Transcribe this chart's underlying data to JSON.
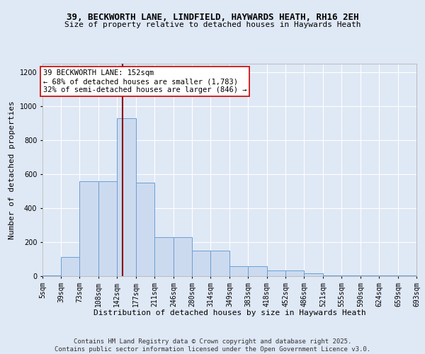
{
  "title_line1": "39, BECKWORTH LANE, LINDFIELD, HAYWARDS HEATH, RH16 2EH",
  "title_line2": "Size of property relative to detached houses in Haywards Heath",
  "xlabel": "Distribution of detached houses by size in Haywards Heath",
  "ylabel": "Number of detached properties",
  "bin_edges": [
    5,
    39,
    73,
    108,
    142,
    177,
    211,
    246,
    280,
    314,
    349,
    383,
    418,
    452,
    486,
    521,
    555,
    590,
    624,
    659,
    693
  ],
  "bar_heights": [
    5,
    112,
    558,
    558,
    930,
    550,
    228,
    228,
    148,
    148,
    60,
    60,
    32,
    32,
    18,
    5,
    5,
    5,
    5,
    5
  ],
  "bar_color": "#ccdaef",
  "bar_edge_color": "#6b9fd4",
  "vline_x": 152,
  "vline_color": "#8b0000",
  "annotation_text": "39 BECKWORTH LANE: 152sqm\n← 68% of detached houses are smaller (1,783)\n32% of semi-detached houses are larger (846) →",
  "annotation_box_color": "#ffffff",
  "annotation_box_edge": "#cc0000",
  "ylim": [
    0,
    1250
  ],
  "yticks": [
    0,
    200,
    400,
    600,
    800,
    1000,
    1200
  ],
  "background_color": "#dfe8f5",
  "grid_color": "#ffffff",
  "axes_bg_color": "#dfe8f5",
  "tick_label_fontsize": 7,
  "annotation_fontsize": 7.5,
  "ylabel_fontsize": 8,
  "xlabel_fontsize": 8,
  "title1_fontsize": 9,
  "title2_fontsize": 8,
  "footer_text": "Contains HM Land Registry data © Crown copyright and database right 2025.\nContains public sector information licensed under the Open Government Licence v3.0.",
  "footer_fontsize": 6.5
}
